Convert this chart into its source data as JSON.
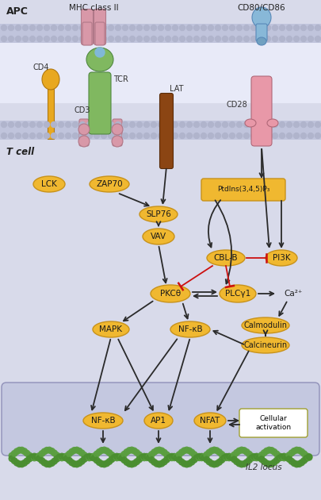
{
  "bg_color": "#d8daea",
  "mem_color": "#c0c4dc",
  "mem_dot_color": "#b0b4cc",
  "white_gap": "#e8eaf8",
  "nuc_color": "#c4c8e0",
  "node_fill": "#f0b830",
  "node_edge": "#c8921a",
  "ptd_fill": "#f0b830",
  "ptd_edge": "#c8921a",
  "cell_box_fill": "#ffffff",
  "cell_box_edge": "#a0a030",
  "dna_green": "#5a9e40",
  "dna_green2": "#4a8e30",
  "arrow_dark": "#2a2a2a",
  "arrow_red": "#cc1010",
  "mhc_color": "#d898a8",
  "tcr_color": "#80b860",
  "cd3_color": "#d898a8",
  "cd4_color": "#e8a820",
  "lat_color": "#8b4513",
  "cd28_color": "#e898a8",
  "cd80_color": "#88b8d8",
  "lck_fill": "#f0b830",
  "labels": {
    "apc": "APC",
    "mhc": "MHC class II",
    "cd80": "CD80/CD86",
    "cd4": "CD4",
    "cd3": "CD3",
    "tcr": "TCR",
    "lat": "LAT",
    "cd28": "CD28",
    "lck": "LCK",
    "zap70": "ZAP70",
    "slp76": "SLP76",
    "vav": "VAV",
    "ptd": "PtdIns(3,4,5)P₃",
    "cblb": "CBL-B",
    "pi3k": "PI3K",
    "pkct": "PKCθ",
    "plcy": "PLCγ1",
    "ca": "Ca²⁺",
    "mapk": "MAPK",
    "nfkb_mid": "NF-κB",
    "calmodulin": "Calmodulin",
    "calcineurin": "Calcineurin",
    "nfkb": "NF-κB",
    "ap1": "AP1",
    "nfat": "NFAT",
    "cellular": "Cellular\nactivation",
    "il2": "IL2 locus",
    "tcell": "T cell"
  }
}
